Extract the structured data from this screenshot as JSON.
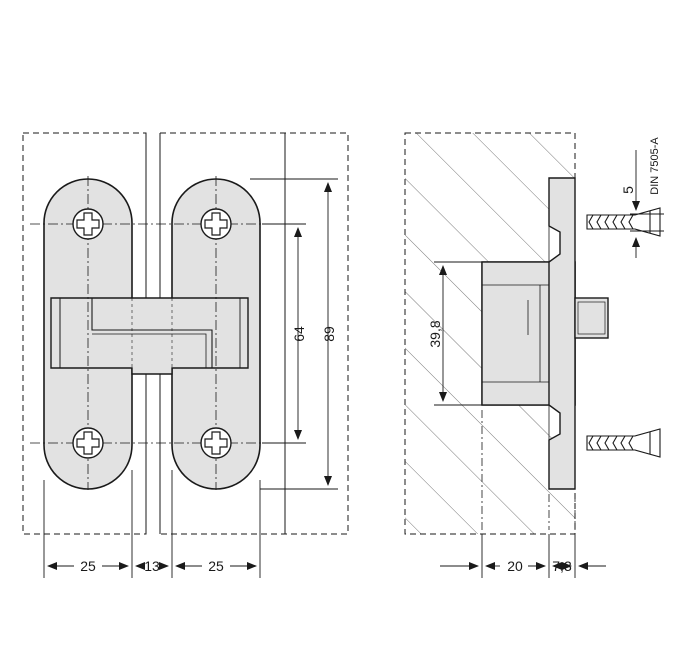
{
  "front_view": {
    "dimensions": {
      "leaf_width_left": "25",
      "gap": "13",
      "leaf_width_right": "25",
      "screw_spacing": "64",
      "overall_height": "89"
    }
  },
  "side_view": {
    "dimensions": {
      "body_height": "39,8",
      "recess_depth": "20",
      "flange_offset": "7,3",
      "screw_diameter": "5"
    },
    "screw_standard": "DIN 7505-A"
  },
  "colors": {
    "line": "#1a1a1a",
    "part_fill": "#e2e2e2",
    "part_fill_dark": "#cfcfcf",
    "paper": "#ffffff"
  }
}
